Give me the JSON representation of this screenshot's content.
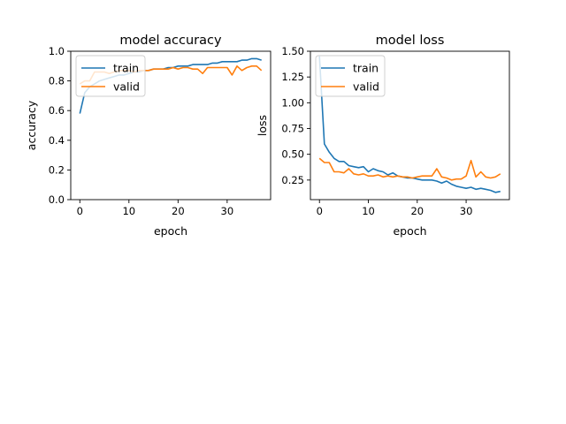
{
  "chart_data": [
    {
      "type": "line",
      "title": "model accuracy",
      "xlabel": "epoch",
      "ylabel": "accuracy",
      "xlim": [
        -1.85,
        38.85
      ],
      "ylim": [
        0.0,
        1.0
      ],
      "xticks": [
        0,
        10,
        20,
        30
      ],
      "yticks": [
        0.0,
        0.2,
        0.4,
        0.6,
        0.8,
        1.0
      ],
      "ytick_labels": [
        "0.0",
        "0.2",
        "0.4",
        "0.6",
        "0.8",
        "1.0"
      ],
      "legend": "upper left",
      "grid": false,
      "x": [
        0,
        1,
        2,
        3,
        4,
        5,
        6,
        7,
        8,
        9,
        10,
        11,
        12,
        13,
        14,
        15,
        16,
        17,
        18,
        19,
        20,
        21,
        22,
        23,
        24,
        25,
        26,
        27,
        28,
        29,
        30,
        31,
        32,
        33,
        34,
        35,
        36,
        37
      ],
      "series": [
        {
          "name": "train",
          "color": "#1f77b4",
          "values": [
            0.58,
            0.72,
            0.76,
            0.78,
            0.8,
            0.81,
            0.82,
            0.83,
            0.84,
            0.84,
            0.85,
            0.86,
            0.86,
            0.87,
            0.87,
            0.88,
            0.88,
            0.88,
            0.89,
            0.89,
            0.9,
            0.9,
            0.9,
            0.91,
            0.91,
            0.91,
            0.91,
            0.92,
            0.92,
            0.93,
            0.93,
            0.93,
            0.93,
            0.94,
            0.94,
            0.95,
            0.95,
            0.94
          ]
        },
        {
          "name": "valid",
          "color": "#ff7f0e",
          "values": [
            0.78,
            0.8,
            0.8,
            0.86,
            0.86,
            0.86,
            0.85,
            0.86,
            0.87,
            0.87,
            0.87,
            0.86,
            0.87,
            0.87,
            0.87,
            0.88,
            0.88,
            0.88,
            0.88,
            0.89,
            0.88,
            0.89,
            0.89,
            0.88,
            0.88,
            0.85,
            0.89,
            0.89,
            0.89,
            0.89,
            0.89,
            0.84,
            0.9,
            0.87,
            0.89,
            0.9,
            0.9,
            0.87
          ]
        }
      ]
    },
    {
      "type": "line",
      "title": "model loss",
      "xlabel": "epoch",
      "ylabel": "loss",
      "xlim": [
        -1.85,
        38.85
      ],
      "ylim": [
        0.06,
        1.5
      ],
      "xticks": [
        0,
        10,
        20,
        30
      ],
      "yticks": [
        0.25,
        0.5,
        0.75,
        1.0,
        1.25,
        1.5
      ],
      "ytick_labels": [
        "0.25",
        "0.50",
        "0.75",
        "1.00",
        "1.25",
        "1.50"
      ],
      "legend": "upper left",
      "grid": false,
      "x": [
        0,
        1,
        2,
        3,
        4,
        5,
        6,
        7,
        8,
        9,
        10,
        11,
        12,
        13,
        14,
        15,
        16,
        17,
        18,
        19,
        20,
        21,
        22,
        23,
        24,
        25,
        26,
        27,
        28,
        29,
        30,
        31,
        32,
        33,
        34,
        35,
        36,
        37
      ],
      "series": [
        {
          "name": "train",
          "color": "#1f77b4",
          "values": [
            1.45,
            0.6,
            0.52,
            0.46,
            0.43,
            0.43,
            0.39,
            0.38,
            0.37,
            0.38,
            0.33,
            0.36,
            0.34,
            0.33,
            0.3,
            0.32,
            0.29,
            0.28,
            0.27,
            0.27,
            0.26,
            0.25,
            0.25,
            0.25,
            0.24,
            0.22,
            0.24,
            0.21,
            0.19,
            0.18,
            0.17,
            0.18,
            0.16,
            0.17,
            0.16,
            0.15,
            0.13,
            0.14
          ]
        },
        {
          "name": "valid",
          "color": "#ff7f0e",
          "values": [
            0.46,
            0.42,
            0.42,
            0.33,
            0.33,
            0.32,
            0.36,
            0.31,
            0.3,
            0.31,
            0.29,
            0.29,
            0.3,
            0.28,
            0.29,
            0.28,
            0.29,
            0.28,
            0.28,
            0.27,
            0.28,
            0.29,
            0.29,
            0.29,
            0.36,
            0.28,
            0.27,
            0.25,
            0.26,
            0.26,
            0.29,
            0.44,
            0.28,
            0.33,
            0.28,
            0.27,
            0.28,
            0.31
          ]
        }
      ]
    }
  ]
}
